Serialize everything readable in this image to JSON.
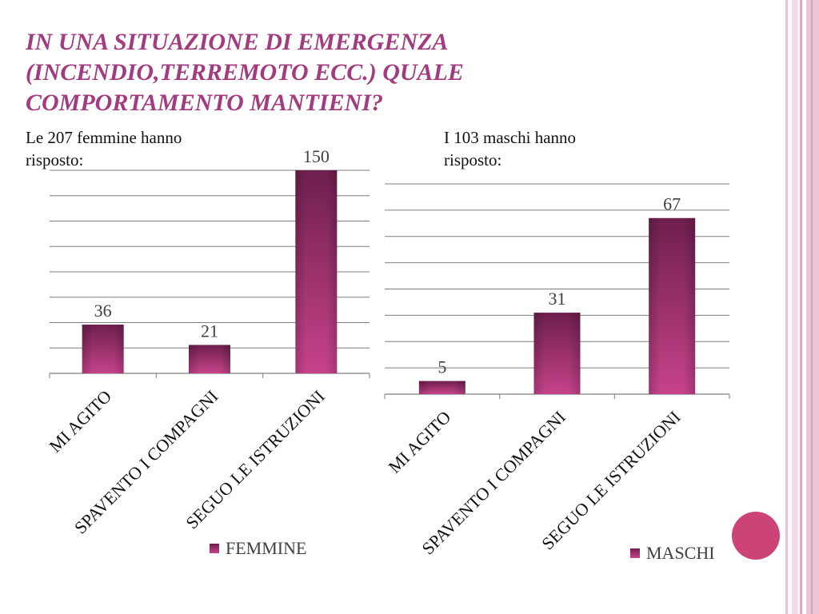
{
  "title_lines": [
    "IN UNA SITUAZIONE DI EMERGENZA",
    "(INCENDIO,TERREMOTO ECC.) QUALE",
    "COMPORTAMENTO MANTIENI?"
  ],
  "subtitles": {
    "femmine": [
      "Le 207 femmine hanno",
      "risposto:"
    ],
    "maschi": [
      "I 103 maschi hanno",
      "risposto:"
    ]
  },
  "colors": {
    "title": "#a33b7f",
    "bar_dark": "#6e1f4e",
    "bar_light": "#c6438a",
    "grid": "#7f7f7f",
    "accent_circle": "#cc4377",
    "side_stripe": "#e3b8c8"
  },
  "chart_data": [
    {
      "type": "bar",
      "categories": [
        "MI AGITO",
        "SPAVENTO I COMPAGNI",
        "SEGUO LE ISTRUZIONI"
      ],
      "series": [
        {
          "name": "FEMMINE",
          "values": [
            36,
            21,
            150
          ]
        }
      ],
      "data_labels": [
        "36",
        "21",
        "150"
      ],
      "ylim": [
        0,
        150
      ],
      "gridlines": true,
      "legend": "bottom-right"
    },
    {
      "type": "bar",
      "categories": [
        "MI AGITO",
        "SPAVENTO I COMPAGNI",
        "SEGUO LE ISTRUZIONI"
      ],
      "series": [
        {
          "name": "MASCHI",
          "values": [
            5,
            31,
            67
          ]
        }
      ],
      "data_labels": [
        "5",
        "31",
        "67"
      ],
      "ylim": [
        0,
        80
      ],
      "gridlines": true,
      "legend": "bottom-right"
    }
  ]
}
